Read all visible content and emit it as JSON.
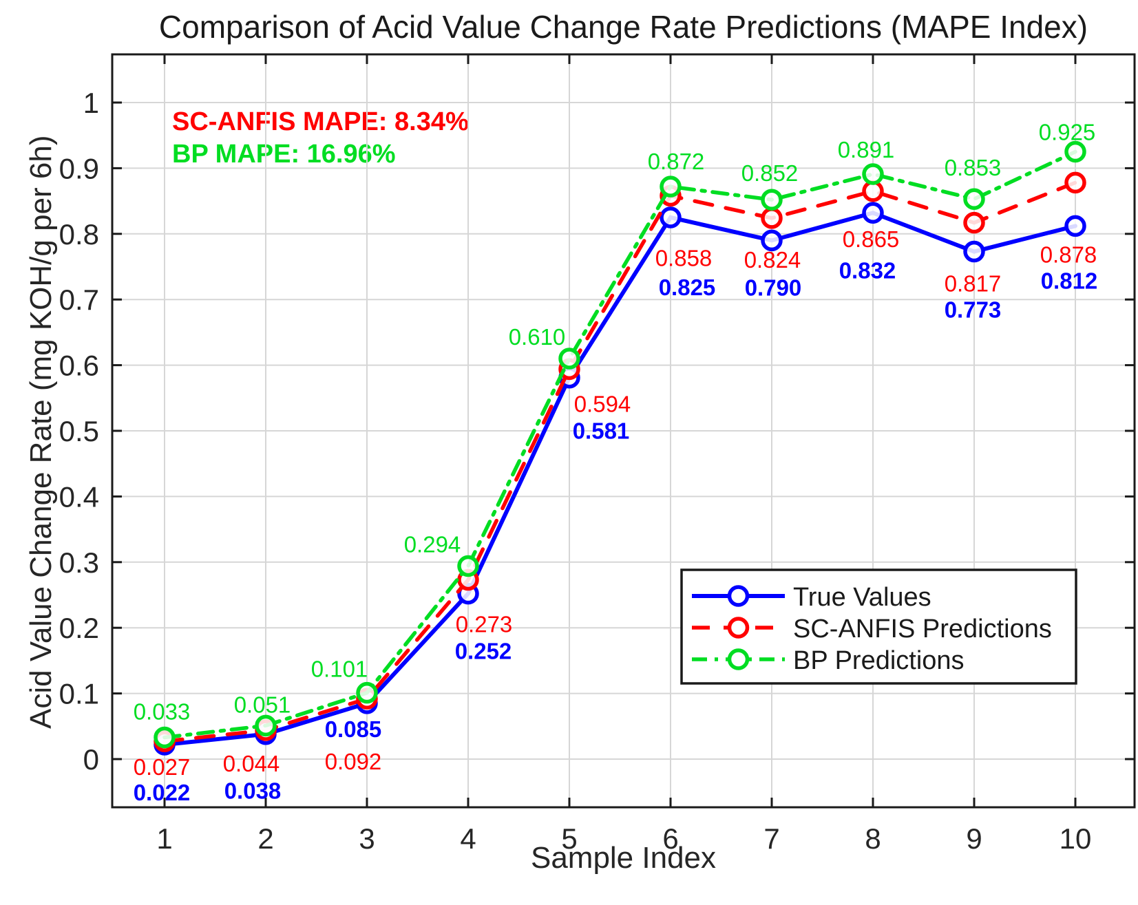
{
  "chart_data": {
    "type": "line",
    "title": "Comparison of Acid Value Change Rate Predictions (MAPE Index)",
    "xlabel": "Sample Index",
    "ylabel": "Acid Value Change Rate (mg KOH/g per 6h)",
    "x": [
      1,
      2,
      3,
      4,
      5,
      6,
      7,
      8,
      9,
      10
    ],
    "xtick_labels": [
      "1",
      "2",
      "3",
      "4",
      "5",
      "6",
      "7",
      "8",
      "9",
      "10"
    ],
    "yticks": [
      0,
      0.1,
      0.2,
      0.3,
      0.4,
      0.5,
      0.6,
      0.7,
      0.8,
      0.9,
      1
    ],
    "ytick_labels": [
      "0",
      "0.1",
      "0.2",
      "0.3",
      "0.4",
      "0.5",
      "0.6",
      "0.7",
      "0.8",
      "0.9",
      "1"
    ],
    "xlim": [
      0.48,
      10.57
    ],
    "ylim": [
      -0.073,
      1.073
    ],
    "grid": true,
    "legend_position": "inset lower right",
    "series": [
      {
        "name": "True Values",
        "color": "#0000ff",
        "line_style": "solid",
        "marker": "circle",
        "labels_bold": true,
        "values": [
          0.022,
          0.038,
          0.085,
          0.252,
          0.581,
          0.825,
          0.79,
          0.832,
          0.773,
          0.812
        ]
      },
      {
        "name": "SC-ANFIS Predictions",
        "color": "#ff0000",
        "line_style": "dashed",
        "marker": "circle",
        "labels_bold": false,
        "values": [
          0.027,
          0.044,
          0.092,
          0.273,
          0.594,
          0.858,
          0.824,
          0.865,
          0.817,
          0.878
        ]
      },
      {
        "name": "BP Predictions",
        "color": "#00dd22",
        "line_style": "dash-dot",
        "marker": "circle",
        "labels_bold": false,
        "values": [
          0.033,
          0.051,
          0.101,
          0.294,
          0.61,
          0.872,
          0.852,
          0.891,
          0.853,
          0.925
        ]
      }
    ],
    "annotations": [
      {
        "text": "SC-ANFIS MAPE: 8.34%",
        "color": "#ff0000"
      },
      {
        "text": "BP MAPE: 16.96%",
        "color": "#00dd22"
      }
    ],
    "colors": {
      "grid": "#d6d6d6",
      "axis": "#1a1a1a",
      "tick_text": "#262626"
    }
  }
}
